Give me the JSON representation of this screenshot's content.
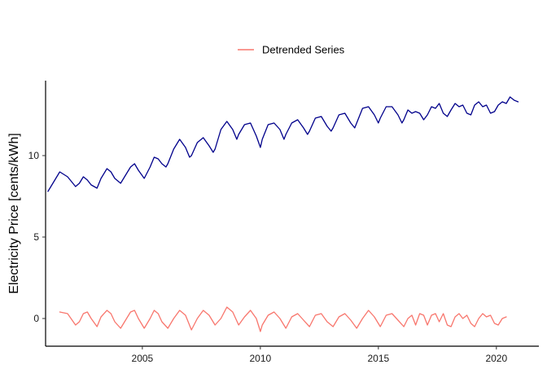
{
  "chart_data": {
    "type": "line",
    "title": "",
    "xlabel": "",
    "ylabel": "Electricity Price [cents/kWh]",
    "xlim": [
      2000.9,
      2021.8
    ],
    "ylim": [
      -1.7,
      14.6
    ],
    "x_ticks": [
      {
        "value": 2005,
        "label": "2005"
      },
      {
        "value": 2010,
        "label": "2010"
      },
      {
        "value": 2015,
        "label": "2015"
      },
      {
        "value": 2020,
        "label": "2020"
      }
    ],
    "y_ticks": [
      {
        "value": 0,
        "label": "0"
      },
      {
        "value": 5,
        "label": "5"
      },
      {
        "value": 10,
        "label": "10"
      }
    ],
    "grid": false,
    "legend": {
      "position": "top",
      "entries": [
        {
          "name": "Detrended Series",
          "color": "#F8766D"
        }
      ]
    },
    "series": [
      {
        "color": "#00008B",
        "x": [
          2001.0,
          2001.5,
          2001.83,
          2002.17,
          2002.33,
          2002.5,
          2002.67,
          2002.83,
          2003.08,
          2003.25,
          2003.5,
          2003.67,
          2003.83,
          2004.08,
          2004.33,
          2004.5,
          2004.67,
          2004.83,
          2005.08,
          2005.33,
          2005.5,
          2005.67,
          2005.83,
          2006.0,
          2006.08,
          2006.33,
          2006.58,
          2006.83,
          2007.0,
          2007.08,
          2007.33,
          2007.58,
          2007.83,
          2008.0,
          2008.08,
          2008.33,
          2008.58,
          2008.83,
          2009.0,
          2009.08,
          2009.33,
          2009.58,
          2009.83,
          2010.0,
          2010.08,
          2010.33,
          2010.58,
          2010.83,
          2011.0,
          2011.08,
          2011.33,
          2011.58,
          2011.83,
          2012.0,
          2012.08,
          2012.33,
          2012.58,
          2012.83,
          2013.0,
          2013.08,
          2013.33,
          2013.58,
          2013.83,
          2014.0,
          2014.08,
          2014.33,
          2014.58,
          2014.83,
          2015.0,
          2015.08,
          2015.33,
          2015.58,
          2015.83,
          2016.0,
          2016.08,
          2016.25,
          2016.42,
          2016.58,
          2016.75,
          2016.92,
          2017.08,
          2017.25,
          2017.42,
          2017.58,
          2017.75,
          2017.92,
          2018.08,
          2018.25,
          2018.42,
          2018.58,
          2018.75,
          2018.92,
          2019.08,
          2019.25,
          2019.42,
          2019.58,
          2019.75,
          2019.92,
          2020.08,
          2020.25,
          2020.42,
          2020.58,
          2020.75,
          2020.92
        ],
        "y": [
          7.8,
          9.0,
          8.7,
          8.1,
          8.3,
          8.7,
          8.5,
          8.2,
          8.0,
          8.6,
          9.2,
          9.0,
          8.6,
          8.3,
          8.9,
          9.3,
          9.5,
          9.1,
          8.6,
          9.3,
          9.9,
          9.8,
          9.5,
          9.3,
          9.5,
          10.4,
          11.0,
          10.5,
          9.9,
          10.0,
          10.8,
          11.1,
          10.6,
          10.2,
          10.4,
          11.6,
          12.1,
          11.6,
          11.0,
          11.3,
          11.9,
          12.0,
          11.2,
          10.5,
          11.0,
          11.9,
          12.0,
          11.6,
          11.0,
          11.3,
          12.0,
          12.2,
          11.7,
          11.3,
          11.5,
          12.3,
          12.4,
          11.8,
          11.5,
          11.7,
          12.5,
          12.6,
          12.0,
          11.7,
          12.0,
          12.9,
          13.0,
          12.5,
          12.0,
          12.3,
          13.0,
          13.0,
          12.5,
          12.0,
          12.2,
          12.8,
          12.6,
          12.7,
          12.6,
          12.2,
          12.5,
          13.0,
          12.9,
          13.2,
          12.6,
          12.4,
          12.8,
          13.2,
          13.0,
          13.1,
          12.6,
          12.5,
          13.1,
          13.3,
          13.0,
          13.1,
          12.6,
          12.7,
          13.1,
          13.3,
          13.2,
          13.6,
          13.4,
          13.3
        ]
      },
      {
        "name": "Detrended Series",
        "color": "#F8766D",
        "x": [
          2001.5,
          2001.83,
          2002.17,
          2002.33,
          2002.5,
          2002.67,
          2002.83,
          2003.08,
          2003.25,
          2003.5,
          2003.67,
          2003.83,
          2004.08,
          2004.33,
          2004.5,
          2004.67,
          2004.83,
          2005.08,
          2005.33,
          2005.5,
          2005.67,
          2005.83,
          2006.08,
          2006.33,
          2006.58,
          2006.83,
          2007.08,
          2007.33,
          2007.58,
          2007.83,
          2008.08,
          2008.33,
          2008.58,
          2008.83,
          2009.08,
          2009.33,
          2009.58,
          2009.83,
          2010.0,
          2010.08,
          2010.33,
          2010.58,
          2010.83,
          2011.08,
          2011.33,
          2011.58,
          2011.83,
          2012.08,
          2012.33,
          2012.58,
          2012.83,
          2013.08,
          2013.33,
          2013.58,
          2013.83,
          2014.08,
          2014.33,
          2014.58,
          2014.83,
          2015.08,
          2015.33,
          2015.58,
          2015.83,
          2016.08,
          2016.25,
          2016.42,
          2016.58,
          2016.75,
          2016.92,
          2017.08,
          2017.25,
          2017.42,
          2017.58,
          2017.75,
          2017.92,
          2018.08,
          2018.25,
          2018.42,
          2018.58,
          2018.75,
          2018.92,
          2019.08,
          2019.25,
          2019.42,
          2019.58,
          2019.75,
          2019.92,
          2020.08,
          2020.25,
          2020.42
        ],
        "y": [
          0.4,
          0.3,
          -0.4,
          -0.2,
          0.3,
          0.4,
          0.0,
          -0.5,
          0.1,
          0.5,
          0.3,
          -0.2,
          -0.6,
          0.0,
          0.4,
          0.5,
          0.0,
          -0.6,
          0.0,
          0.5,
          0.3,
          -0.2,
          -0.6,
          0.0,
          0.5,
          0.2,
          -0.7,
          0.0,
          0.5,
          0.2,
          -0.4,
          0.0,
          0.7,
          0.4,
          -0.4,
          0.1,
          0.5,
          0.0,
          -0.8,
          -0.4,
          0.2,
          0.4,
          0.0,
          -0.6,
          0.1,
          0.3,
          -0.1,
          -0.5,
          0.2,
          0.3,
          -0.2,
          -0.5,
          0.1,
          0.3,
          -0.1,
          -0.6,
          0.0,
          0.5,
          0.1,
          -0.5,
          0.2,
          0.3,
          -0.1,
          -0.5,
          0.0,
          0.2,
          -0.4,
          0.3,
          0.2,
          -0.4,
          0.2,
          0.3,
          -0.2,
          0.3,
          -0.4,
          -0.5,
          0.1,
          0.3,
          0.0,
          0.2,
          -0.3,
          -0.5,
          0.0,
          0.3,
          0.1,
          0.2,
          -0.3,
          -0.4,
          0.0,
          0.1
        ]
      }
    ]
  }
}
